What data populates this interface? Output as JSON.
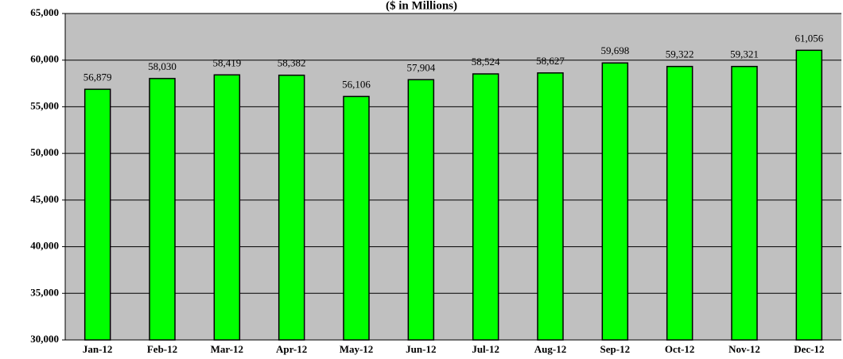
{
  "chart_data": {
    "type": "bar",
    "subtitle": "($ in Millions)",
    "categories": [
      "Jan-12",
      "Feb-12",
      "Mar-12",
      "Apr-12",
      "May-12",
      "Jun-12",
      "Jul-12",
      "Aug-12",
      "Sep-12",
      "Oct-12",
      "Nov-12",
      "Dec-12"
    ],
    "values": [
      56879,
      58030,
      58419,
      58382,
      56106,
      57904,
      58524,
      58627,
      59698,
      59322,
      59321,
      61056
    ],
    "value_labels": [
      "56,879",
      "58,030",
      "58,419",
      "58,382",
      "56,106",
      "57,904",
      "58,524",
      "58,627",
      "59,698",
      "59,322",
      "59,321",
      "61,056"
    ],
    "color": "#00ff00",
    "ylim": [
      30000,
      65000
    ],
    "yticks": [
      {
        "value": 30000,
        "label": "30,000"
      },
      {
        "value": 35000,
        "label": "35,000"
      },
      {
        "value": 40000,
        "label": "40,000"
      },
      {
        "value": 45000,
        "label": "45,000"
      },
      {
        "value": 50000,
        "label": "50,000"
      },
      {
        "value": 55000,
        "label": "55,000"
      },
      {
        "value": 60000,
        "label": "60,000"
      },
      {
        "value": 65000,
        "label": "65,000"
      }
    ],
    "grid": true
  }
}
